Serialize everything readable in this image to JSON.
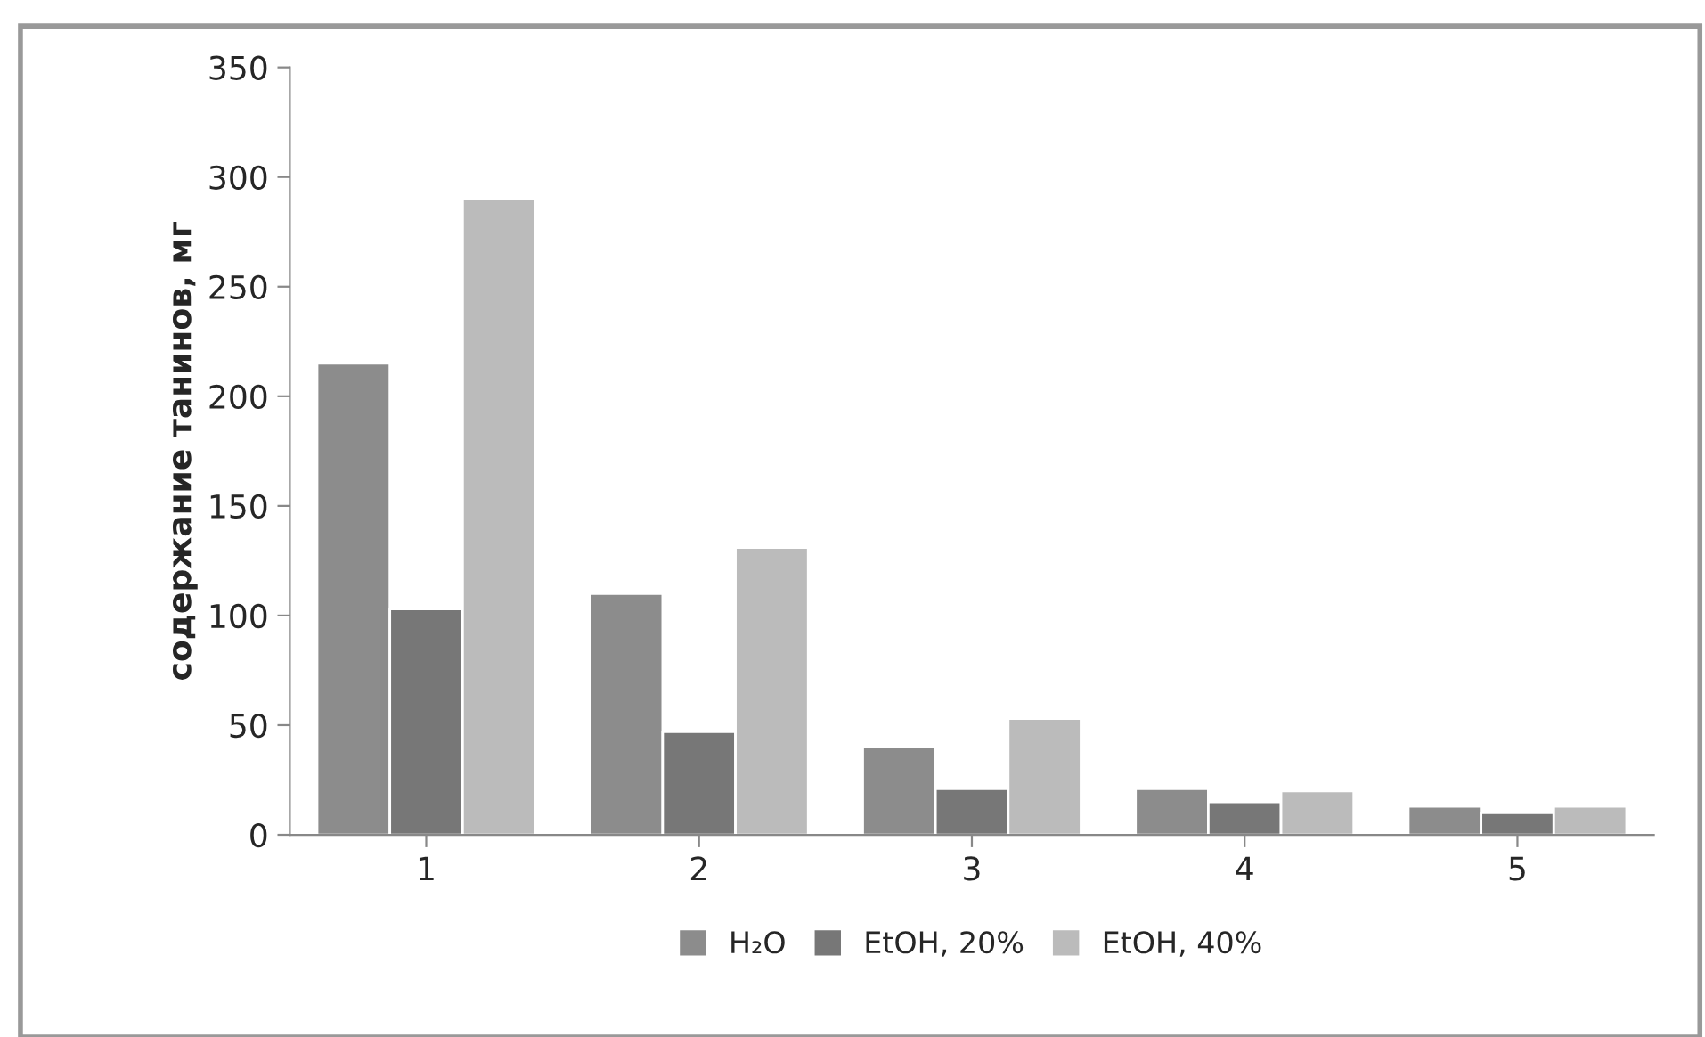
{
  "chart_data": {
    "type": "bar",
    "ylabel": "содержание танинов, мг",
    "categories": [
      "1",
      "2",
      "3",
      "4",
      "5"
    ],
    "series": [
      {
        "name": "H₂O",
        "color": "#8c8c8c",
        "values": [
          215,
          110,
          40,
          21,
          13
        ]
      },
      {
        "name": "EtOH, 20%",
        "color": "#777777",
        "values": [
          103,
          47,
          21,
          15,
          10
        ]
      },
      {
        "name": "EtOH, 40%",
        "color": "#bbbbbb",
        "values": [
          290,
          131,
          53,
          20,
          13
        ]
      }
    ],
    "ylim": [
      0,
      350
    ],
    "yticks": [
      0,
      50,
      100,
      150,
      200,
      250,
      300,
      350
    ],
    "grid": false,
    "legend": "bottom"
  }
}
